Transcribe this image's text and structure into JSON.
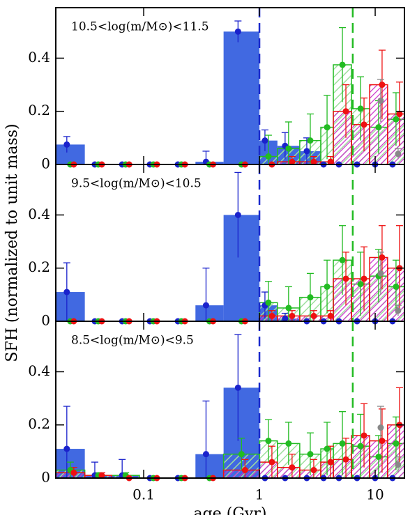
{
  "chart_data": [
    {
      "type": "histogram",
      "label": "10.5<log(m/M⊙)<11.5",
      "xscale": "log",
      "xlim": [
        0.0174,
        17.9
      ],
      "ylim": [
        0,
        0.59
      ],
      "yticks": [
        0,
        0.2,
        0.4
      ],
      "bins": [
        0.0174,
        0.031,
        0.053,
        0.092,
        0.16,
        0.28,
        0.49,
        1.0,
        1.43,
        2.23,
        3.39,
        4.35,
        6.24,
        8.95,
        12.8,
        17.9
      ],
      "vlines": [
        {
          "x": 1.0,
          "color": "#1a2acc"
        },
        {
          "x": 6.4,
          "color": "#22bb22"
        }
      ],
      "series": [
        {
          "style": "filled",
          "color": "#4169e1",
          "point_color": "#1a22cc",
          "values": [
            0.075,
            0,
            0,
            0,
            0,
            0.01,
            0.5,
            0.09,
            0.07,
            0.05,
            0,
            0,
            0,
            0,
            0
          ],
          "errors": [
            0.03,
            0,
            0,
            0,
            0,
            0.04,
            0.04,
            0.04,
            0.05,
            0.05,
            0,
            0,
            0,
            0,
            0
          ]
        },
        {
          "style": "hatched",
          "color": "#22bb22",
          "hatch": "#9fdf9f",
          "values": [
            0,
            0,
            0,
            0,
            0,
            0,
            0,
            0.03,
            0.06,
            0.09,
            0.14,
            0.375,
            0.21,
            0.14,
            0.17
          ],
          "errors": [
            0,
            0,
            0,
            0,
            0,
            0,
            0,
            0.08,
            0.1,
            0.1,
            0.12,
            0.14,
            0.12,
            0.1,
            0.1
          ]
        },
        {
          "style": "hatched",
          "color": "#ee1111",
          "hatch": "#cc33cc",
          "values": [
            0,
            0,
            0,
            0,
            0,
            0,
            0,
            0,
            0.01,
            0.01,
            0.01,
            0.2,
            0.15,
            0.3,
            0.19
          ],
          "errors": [
            0,
            0,
            0,
            0,
            0,
            0,
            0,
            0,
            0.02,
            0.02,
            0.02,
            0.1,
            0.1,
            0.13,
            0.12
          ]
        },
        {
          "style": "points",
          "color": "#888888",
          "values": [
            null,
            null,
            null,
            null,
            null,
            null,
            null,
            null,
            null,
            null,
            null,
            null,
            null,
            0.24,
            0.04
          ],
          "errors": [
            null,
            null,
            null,
            null,
            null,
            null,
            null,
            null,
            null,
            null,
            null,
            null,
            null,
            0.08,
            0.02
          ]
        }
      ]
    },
    {
      "type": "histogram",
      "label": "9.5<log(m/M⊙)<10.5",
      "ylabel": "SFH (normalized to unit mass)",
      "xscale": "log",
      "xlim": [
        0.0174,
        17.9
      ],
      "ylim": [
        0,
        0.59
      ],
      "yticks": [
        0,
        0.2,
        0.4
      ],
      "bins": [
        0.0174,
        0.031,
        0.053,
        0.092,
        0.16,
        0.28,
        0.49,
        1.0,
        1.43,
        2.23,
        3.39,
        4.35,
        6.24,
        8.95,
        12.8,
        17.9
      ],
      "vlines": [
        {
          "x": 1.0,
          "color": "#1a2acc"
        },
        {
          "x": 6.4,
          "color": "#22bb22"
        }
      ],
      "series": [
        {
          "style": "filled",
          "color": "#4169e1",
          "point_color": "#1a22cc",
          "values": [
            0.11,
            0,
            0,
            0,
            0,
            0.06,
            0.4,
            0.06,
            0.01,
            0,
            0,
            0,
            0,
            0,
            0
          ],
          "errors": [
            0.11,
            0,
            0,
            0,
            0,
            0.14,
            0.16,
            0.05,
            0.02,
            0,
            0,
            0,
            0,
            0,
            0
          ]
        },
        {
          "style": "hatched",
          "color": "#22bb22",
          "hatch": "#9fdf9f",
          "values": [
            0,
            0,
            0,
            0,
            0,
            0,
            0,
            0.07,
            0.05,
            0.09,
            0.13,
            0.23,
            0.14,
            0.17,
            0.13
          ],
          "errors": [
            0,
            0,
            0,
            0,
            0,
            0,
            0,
            0.08,
            0.08,
            0.09,
            0.1,
            0.13,
            0.12,
            0.1,
            0.1
          ]
        },
        {
          "style": "hatched",
          "color": "#ee1111",
          "hatch": "#cc33cc",
          "values": [
            0,
            0,
            0,
            0,
            0,
            0,
            0,
            0.02,
            0.02,
            0.02,
            0.02,
            0.16,
            0.16,
            0.24,
            0.2
          ],
          "errors": [
            0,
            0,
            0,
            0,
            0,
            0,
            0,
            0.02,
            0.02,
            0.02,
            0.02,
            0.1,
            0.12,
            0.12,
            0.16
          ]
        },
        {
          "style": "points",
          "color": "#888888",
          "values": [
            null,
            null,
            null,
            null,
            null,
            null,
            null,
            null,
            null,
            null,
            null,
            null,
            null,
            0.18,
            0.04
          ],
          "errors": [
            null,
            null,
            null,
            null,
            null,
            null,
            null,
            null,
            null,
            null,
            null,
            null,
            null,
            0.08,
            0.02
          ]
        }
      ]
    },
    {
      "type": "histogram",
      "label": "8.5<log(m/M⊙)<9.5",
      "xlabel": "age (Gyr)",
      "xscale": "log",
      "xlim": [
        0.0174,
        17.9
      ],
      "ylim": [
        0,
        0.59
      ],
      "yticks": [
        0,
        0.2,
        0.4
      ],
      "xticks": [
        0.1,
        1,
        10
      ],
      "bins": [
        0.0174,
        0.031,
        0.053,
        0.092,
        0.16,
        0.28,
        0.49,
        1.0,
        1.43,
        2.23,
        3.39,
        4.35,
        6.24,
        8.95,
        12.8,
        17.9
      ],
      "vlines": [
        {
          "x": 1.0,
          "color": "#1a2acc"
        },
        {
          "x": 6.4,
          "color": "#22bb22"
        }
      ],
      "series": [
        {
          "style": "filled",
          "color": "#4169e1",
          "point_color": "#1a22cc",
          "values": [
            0.11,
            0.01,
            0.01,
            0,
            0,
            0.09,
            0.34,
            0,
            0,
            0,
            0,
            0,
            0,
            0,
            0
          ],
          "errors": [
            0.16,
            0.05,
            0.06,
            0,
            0,
            0.2,
            0.2,
            0,
            0,
            0,
            0,
            0,
            0,
            0,
            0
          ]
        },
        {
          "style": "hatched",
          "color": "#22bb22",
          "hatch": "#9fdf9f",
          "values": [
            0.03,
            0.01,
            0.01,
            0,
            0,
            0,
            0.09,
            0.14,
            0.13,
            0.09,
            0.11,
            0.13,
            0.12,
            0.08,
            0.13
          ],
          "errors": [
            0.03,
            0.01,
            0.01,
            0,
            0,
            0,
            0.06,
            0.08,
            0.08,
            0.08,
            0.1,
            0.12,
            0.12,
            0.08,
            0.1
          ]
        },
        {
          "style": "hatched",
          "color": "#ee1111",
          "hatch": "#cc33cc",
          "values": [
            0.02,
            0.01,
            0,
            0,
            0,
            0,
            0.03,
            0.06,
            0.04,
            0.03,
            0.06,
            0.07,
            0.16,
            0.14,
            0.2
          ],
          "errors": [
            0.02,
            0.01,
            0,
            0,
            0,
            0,
            0.04,
            0.06,
            0.05,
            0.04,
            0.06,
            0.08,
            0.12,
            0.12,
            0.14
          ]
        },
        {
          "style": "points",
          "color": "#888888",
          "values": [
            null,
            null,
            null,
            null,
            null,
            null,
            null,
            null,
            null,
            null,
            null,
            null,
            null,
            0.19,
            0.05
          ],
          "errors": [
            null,
            null,
            null,
            null,
            null,
            null,
            null,
            null,
            null,
            null,
            null,
            null,
            null,
            0.08,
            0.03
          ]
        }
      ]
    }
  ]
}
